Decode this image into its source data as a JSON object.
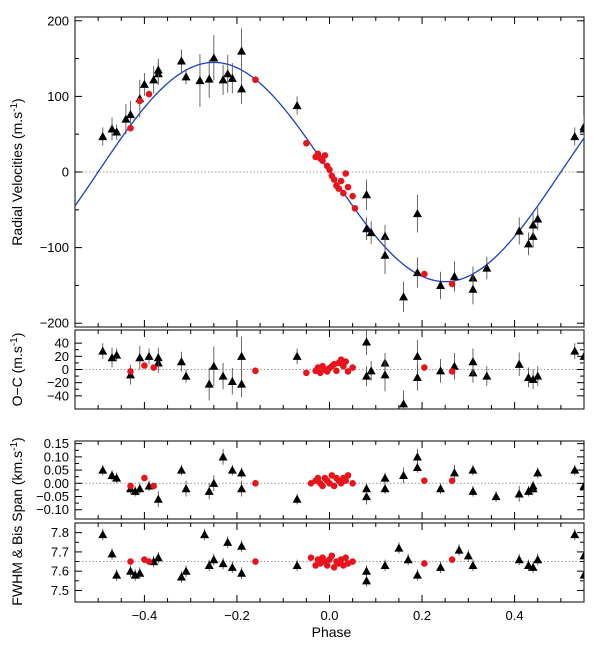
{
  "chart_data": [
    {
      "type": "scatter",
      "name": "radial-velocity",
      "ylabel": "Radial Velocities (m.s",
      "ylabel_sup": "-1",
      "ylabel_end": ")",
      "xlim": [
        -0.55,
        0.55
      ],
      "ylim": [
        -205,
        205
      ],
      "yticks": [
        -200,
        -100,
        0,
        100,
        200
      ],
      "yticklabels": [
        "−200",
        "−100",
        "0",
        "100",
        "200"
      ],
      "zero_line": 0,
      "model": {
        "type": "sine",
        "amplitude": 145,
        "phase_of_max": -0.25,
        "offset": 0,
        "color": "#1a3fc8"
      },
      "series": [
        {
          "name": "black-triangles",
          "marker": "triangle",
          "color": "#000000",
          "x": [
            -0.49,
            -0.47,
            -0.46,
            -0.44,
            -0.43,
            -0.41,
            -0.4,
            -0.38,
            -0.37,
            -0.37,
            -0.32,
            -0.31,
            -0.28,
            -0.26,
            -0.25,
            -0.23,
            -0.22,
            -0.21,
            -0.19,
            -0.19,
            -0.07,
            0.08,
            0.08,
            0.09,
            0.12,
            0.12,
            0.16,
            0.19,
            0.19,
            0.24,
            0.27,
            0.31,
            0.31,
            0.34,
            0.41,
            0.43,
            0.44,
            0.44,
            0.45,
            0.53,
            0.55,
            0.55
          ],
          "y": [
            47,
            57,
            53,
            70,
            76,
            97,
            116,
            122,
            130,
            135,
            147,
            126,
            121,
            123,
            151,
            122,
            130,
            124,
            160,
            110,
            88,
            -30,
            -75,
            -80,
            -85,
            -110,
            -165,
            -55,
            -133,
            -150,
            -138,
            -140,
            -155,
            -127,
            -78,
            -95,
            -85,
            -70,
            -62,
            47,
            60,
            57
          ],
          "err": [
            12,
            15,
            10,
            20,
            18,
            25,
            15,
            18,
            15,
            15,
            15,
            10,
            35,
            25,
            30,
            20,
            25,
            20,
            30,
            20,
            12,
            20,
            15,
            15,
            15,
            25,
            20,
            25,
            20,
            18,
            20,
            15,
            20,
            15,
            18,
            15,
            15,
            15,
            15,
            12,
            15,
            12
          ]
        },
        {
          "name": "red-dots",
          "marker": "circle",
          "color": "#e8141c",
          "x": [
            -0.43,
            -0.41,
            -0.39,
            -0.16,
            -0.05,
            -0.03,
            -0.025,
            -0.02,
            -0.015,
            -0.01,
            -0.005,
            0.0,
            0.005,
            0.01,
            0.015,
            0.02,
            0.025,
            0.03,
            0.035,
            0.04,
            0.05,
            0.055,
            0.205,
            0.265
          ],
          "y": [
            58,
            94,
            103,
            122,
            38,
            20,
            24,
            18,
            15,
            22,
            8,
            3,
            -5,
            -10,
            -18,
            -22,
            -12,
            -28,
            -2,
            -20,
            -32,
            -48,
            -135,
            -148
          ],
          "err": []
        }
      ]
    },
    {
      "type": "scatter",
      "name": "residuals",
      "ylabel": "O−C  (m.s",
      "ylabel_sup": "-1",
      "ylabel_end": ")",
      "xlim": [
        -0.55,
        0.55
      ],
      "ylim": [
        -60,
        60
      ],
      "yticks": [
        -40,
        -20,
        0,
        20,
        40
      ],
      "yticklabels": [
        "−40",
        "−20",
        "0",
        "20",
        "40"
      ],
      "zero_line": 0,
      "series": [
        {
          "name": "black-triangles",
          "marker": "triangle",
          "color": "#000000",
          "x": [
            -0.49,
            -0.47,
            -0.46,
            -0.43,
            -0.41,
            -0.39,
            -0.37,
            -0.37,
            -0.32,
            -0.31,
            -0.26,
            -0.25,
            -0.23,
            -0.21,
            -0.19,
            -0.19,
            -0.07,
            0.08,
            0.08,
            0.09,
            0.12,
            0.12,
            0.16,
            0.19,
            0.19,
            0.24,
            0.27,
            0.31,
            0.31,
            0.34,
            0.41,
            0.43,
            0.44,
            0.45,
            0.53,
            0.55
          ],
          "y": [
            28,
            18,
            22,
            -8,
            18,
            20,
            10,
            18,
            12,
            -10,
            -22,
            5,
            -10,
            -18,
            20,
            -22,
            20,
            42,
            -10,
            -2,
            10,
            -8,
            -52,
            20,
            -12,
            -2,
            5,
            -5,
            12,
            -10,
            8,
            -12,
            -15,
            -10,
            28,
            20
          ],
          "err": [
            12,
            15,
            10,
            15,
            18,
            12,
            15,
            15,
            15,
            10,
            25,
            30,
            20,
            20,
            30,
            20,
            12,
            20,
            15,
            15,
            15,
            25,
            20,
            25,
            20,
            18,
            20,
            15,
            20,
            15,
            18,
            15,
            15,
            15,
            12,
            15
          ]
        },
        {
          "name": "red-dots",
          "marker": "circle",
          "color": "#e8141c",
          "x": [
            -0.43,
            -0.4,
            -0.38,
            -0.16,
            -0.05,
            -0.03,
            -0.025,
            -0.02,
            -0.015,
            -0.01,
            -0.005,
            0.0,
            0.005,
            0.01,
            0.015,
            0.02,
            0.025,
            0.03,
            0.035,
            0.04,
            0.05,
            0.205,
            0.265
          ],
          "y": [
            -3,
            6,
            3,
            -2,
            -5,
            -2,
            3,
            -5,
            5,
            0,
            -3,
            2,
            5,
            8,
            -2,
            10,
            15,
            5,
            12,
            -3,
            3,
            3,
            -3
          ],
          "err": []
        }
      ]
    },
    {
      "type": "scatter",
      "name": "bisector-span",
      "ylabel": "Bis Span (km.s",
      "ylabel_sup": "-1",
      "ylabel_end": ")",
      "ylabel_prefix": "FWHM & ",
      "xlim": [
        -0.55,
        0.55
      ],
      "ylim": [
        -0.135,
        0.16
      ],
      "yticks": [
        -0.1,
        -0.05,
        0.0,
        0.05,
        0.1,
        0.15
      ],
      "yticklabels": [
        "−0.10",
        "−0.05",
        "0.00",
        "0.05",
        "0.10",
        "0.15"
      ],
      "zero_line": 0,
      "series": [
        {
          "name": "black-triangles",
          "marker": "triangle",
          "color": "#000000",
          "x": [
            -0.49,
            -0.47,
            -0.46,
            -0.43,
            -0.42,
            -0.41,
            -0.39,
            -0.37,
            -0.32,
            -0.31,
            -0.26,
            -0.25,
            -0.23,
            -0.21,
            -0.19,
            -0.19,
            -0.07,
            0.08,
            0.08,
            0.12,
            0.12,
            0.16,
            0.19,
            0.19,
            0.24,
            0.27,
            0.31,
            0.31,
            0.36,
            0.41,
            0.43,
            0.44,
            0.44,
            0.45,
            0.53,
            0.55
          ],
          "y": [
            0.05,
            0.03,
            0.02,
            -0.02,
            -0.03,
            -0.02,
            -0.01,
            -0.06,
            0.05,
            -0.02,
            -0.03,
            0.0,
            0.1,
            0.05,
            -0.02,
            0.04,
            -0.06,
            -0.05,
            -0.02,
            0.02,
            -0.02,
            0.03,
            0.1,
            0.06,
            -0.02,
            0.04,
            -0.03,
            0.05,
            -0.05,
            -0.04,
            -0.03,
            -0.02,
            -0.01,
            0.04,
            0.05,
            -0.01
          ],
          "err": [
            0.02,
            0.02,
            0.02,
            0.02,
            0.02,
            0.02,
            0.02,
            0.03,
            0.02,
            0.03,
            0.03,
            0.03,
            0.03,
            0.02,
            0.03,
            0.02,
            0.02,
            0.03,
            0.02,
            0.02,
            0.02,
            0.03,
            0.03,
            0.02,
            0.02,
            0.03,
            0.02,
            0.02,
            0.02,
            0.03,
            0.02,
            0.02,
            0.02,
            0.02,
            0.02,
            0.02
          ]
        },
        {
          "name": "red-dots",
          "marker": "circle",
          "color": "#e8141c",
          "x": [
            -0.43,
            -0.4,
            -0.38,
            -0.16,
            -0.04,
            -0.03,
            -0.025,
            -0.02,
            -0.015,
            -0.01,
            -0.005,
            0.0,
            0.005,
            0.01,
            0.015,
            0.02,
            0.025,
            0.03,
            0.035,
            0.04,
            0.05,
            0.205,
            0.265
          ],
          "y": [
            -0.01,
            0.02,
            -0.01,
            0.0,
            0.0,
            0.01,
            0.02,
            0.0,
            -0.01,
            0.02,
            0.01,
            0.0,
            0.03,
            -0.01,
            0.02,
            0.01,
            0.0,
            0.02,
            0.01,
            0.03,
            0.0,
            0.01,
            0.01
          ],
          "err": []
        }
      ]
    },
    {
      "type": "scatter",
      "name": "fwhm",
      "ylabel": "",
      "xlabel": "Phase",
      "xlim": [
        -0.55,
        0.55
      ],
      "ylim": [
        7.44,
        7.85
      ],
      "yticks": [
        7.5,
        7.6,
        7.7,
        7.8
      ],
      "yticklabels": [
        "7.5",
        "7.6",
        "7.7",
        "7.8"
      ],
      "xticks": [
        -0.4,
        -0.2,
        0.0,
        0.2,
        0.4
      ],
      "xticklabels": [
        "−0.4",
        "−0.2",
        "0.0",
        "0.2",
        "0.4"
      ],
      "zero_line": 7.65,
      "series": [
        {
          "name": "black-triangles",
          "marker": "triangle",
          "color": "#000000",
          "x": [
            -0.49,
            -0.47,
            -0.46,
            -0.43,
            -0.42,
            -0.41,
            -0.38,
            -0.37,
            -0.32,
            -0.31,
            -0.27,
            -0.26,
            -0.25,
            -0.23,
            -0.22,
            -0.21,
            -0.19,
            -0.19,
            -0.07,
            0.08,
            0.08,
            0.12,
            0.15,
            0.17,
            0.19,
            0.24,
            0.28,
            0.3,
            0.31,
            0.41,
            0.43,
            0.44,
            0.45,
            0.53,
            0.55,
            0.55
          ],
          "y": [
            7.79,
            7.69,
            7.58,
            7.6,
            7.58,
            7.59,
            7.65,
            7.67,
            7.57,
            7.6,
            7.79,
            7.63,
            7.66,
            7.64,
            7.75,
            7.62,
            7.73,
            7.59,
            7.63,
            7.55,
            7.6,
            7.63,
            7.72,
            7.66,
            7.58,
            7.62,
            7.71,
            7.68,
            7.63,
            7.66,
            7.63,
            7.62,
            7.66,
            7.79,
            7.68,
            7.58
          ],
          "err": [
            0.03,
            0.03,
            0.03,
            0.03,
            0.03,
            0.03,
            0.03,
            0.03,
            0.03,
            0.03,
            0.03,
            0.03,
            0.03,
            0.03,
            0.03,
            0.03,
            0.03,
            0.03,
            0.03,
            0.03,
            0.03,
            0.03,
            0.03,
            0.03,
            0.03,
            0.03,
            0.03,
            0.03,
            0.03,
            0.03,
            0.03,
            0.03,
            0.03,
            0.03,
            0.03,
            0.03
          ]
        },
        {
          "name": "red-dots",
          "marker": "circle",
          "color": "#e8141c",
          "x": [
            -0.43,
            -0.4,
            -0.39,
            -0.16,
            -0.04,
            -0.03,
            -0.025,
            -0.02,
            -0.015,
            -0.01,
            -0.005,
            0.0,
            0.005,
            0.01,
            0.015,
            0.02,
            0.025,
            0.03,
            0.035,
            0.04,
            0.05,
            0.205,
            0.265
          ],
          "y": [
            7.65,
            7.66,
            7.65,
            7.65,
            7.67,
            7.63,
            7.66,
            7.64,
            7.67,
            7.65,
            7.63,
            7.66,
            7.68,
            7.62,
            7.65,
            7.64,
            7.66,
            7.63,
            7.67,
            7.64,
            7.65,
            7.64,
            7.66
          ],
          "err": []
        }
      ]
    }
  ]
}
